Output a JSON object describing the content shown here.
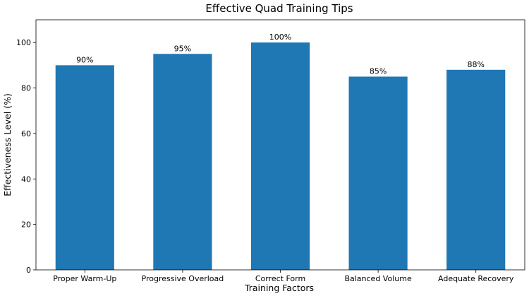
{
  "chart_data": {
    "type": "bar",
    "title": "Effective Quad Training Tips",
    "xlabel": "Training Factors",
    "ylabel": "Effectiveness Level (%)",
    "categories": [
      "Proper Warm-Up",
      "Progressive Overload",
      "Correct Form",
      "Balanced Volume",
      "Adequate Recovery"
    ],
    "values": [
      90,
      95,
      100,
      85,
      88
    ],
    "data_labels": [
      "90%",
      "95%",
      "100%",
      "85%",
      "88%"
    ],
    "ylim": [
      0,
      110
    ],
    "yticks": [
      0,
      20,
      40,
      60,
      80,
      100
    ],
    "grid": false,
    "bar_color": "#1f77b4"
  }
}
